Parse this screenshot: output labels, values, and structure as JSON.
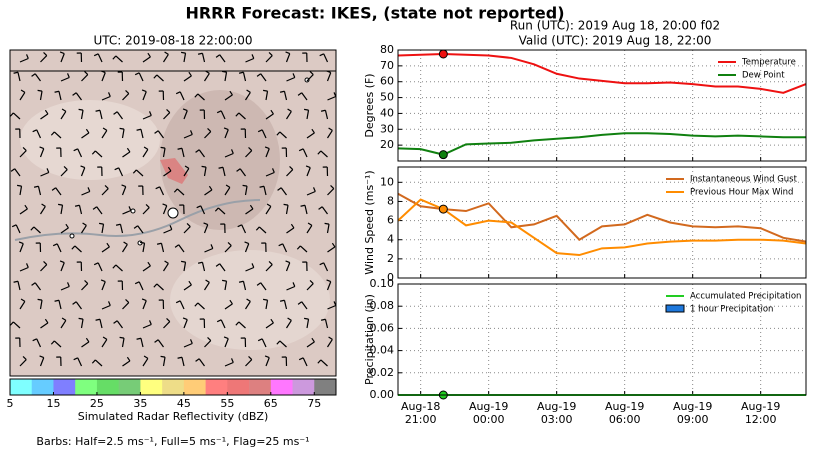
{
  "title": "HRRR Forecast: IKES, (state not reported)",
  "map": {
    "title": "UTC: 2019-08-18 22:00:00",
    "colorbar": {
      "label": "Simulated Radar Reflectivity (dBZ)",
      "lim": [
        5,
        80
      ],
      "ticks": [
        5,
        15,
        25,
        35,
        45,
        55,
        65,
        75
      ],
      "colors": [
        "#7fffff",
        "#66ccff",
        "#7f7fff",
        "#7fff7f",
        "#66dd66",
        "#77cc77",
        "#ffff7f",
        "#eedd88",
        "#ffcc77",
        "#ff7f7f",
        "#ee7777",
        "#dd8080",
        "#ff77ff",
        "#cc99dd",
        "#808080"
      ]
    },
    "note": "Barbs: Half=2.5 ms⁻¹, Full=5 ms⁻¹, Flag=25 ms⁻¹"
  },
  "run": "Run (UTC): 2019 Aug 18, 20:00 f02",
  "valid": "Valid (UTC): 2019 Aug 18, 22:00",
  "chart_data": [
    {
      "type": "line",
      "ylabel": "Degrees (F)",
      "ylim": [
        10,
        80
      ],
      "yticks": [
        20,
        30,
        40,
        50,
        60,
        70,
        80
      ],
      "grid": true,
      "legend": "upper right",
      "x": [
        "Aug-18 20:00",
        "Aug-18 21:00",
        "Aug-18 22:00",
        "Aug-18 23:00",
        "Aug-19 00:00",
        "Aug-19 01:00",
        "Aug-19 02:00",
        "Aug-19 03:00",
        "Aug-19 04:00",
        "Aug-19 05:00",
        "Aug-19 06:00",
        "Aug-19 07:00",
        "Aug-19 08:00",
        "Aug-19 09:00",
        "Aug-19 10:00",
        "Aug-19 11:00",
        "Aug-19 12:00",
        "Aug-19 13:00",
        "Aug-19 14:00"
      ],
      "xlim": [
        "Aug-18 20:00",
        "Aug-19 14:00"
      ],
      "xticks": [
        "Aug-18 21:00",
        "Aug-19 00:00",
        "Aug-19 03:00",
        "Aug-19 06:00",
        "Aug-19 09:00",
        "Aug-19 12:00"
      ],
      "series": [
        {
          "name": "Temperature",
          "color": "#ee1111",
          "marker": true,
          "values": [
            76.5,
            77,
            77.5,
            77,
            76.5,
            75,
            71,
            65,
            62,
            60.5,
            59,
            59,
            59.5,
            58.5,
            57,
            57,
            55.5,
            53,
            58.5
          ]
        },
        {
          "name": "Dew Point",
          "color": "#108010",
          "marker": true,
          "values": [
            18,
            17.5,
            14,
            20.5,
            21,
            21.5,
            23,
            24,
            25,
            26.5,
            27.5,
            27.5,
            27,
            26,
            25.5,
            26,
            25.5,
            25,
            25
          ]
        }
      ]
    },
    {
      "type": "line",
      "ylabel": "Wind Speed (ms⁻¹)",
      "ylim": [
        0,
        11.6
      ],
      "yticks": [
        0,
        2,
        4,
        6,
        8,
        10
      ],
      "grid": true,
      "legend": "upper right",
      "x": [
        "Aug-18 20:00",
        "Aug-18 21:00",
        "Aug-18 22:00",
        "Aug-18 23:00",
        "Aug-19 00:00",
        "Aug-19 01:00",
        "Aug-19 02:00",
        "Aug-19 03:00",
        "Aug-19 04:00",
        "Aug-19 05:00",
        "Aug-19 06:00",
        "Aug-19 07:00",
        "Aug-19 08:00",
        "Aug-19 09:00",
        "Aug-19 10:00",
        "Aug-19 11:00",
        "Aug-19 12:00",
        "Aug-19 13:00",
        "Aug-19 14:00"
      ],
      "xlim": [
        "Aug-18 20:00",
        "Aug-19 14:00"
      ],
      "xticks": [
        "Aug-18 21:00",
        "Aug-19 00:00",
        "Aug-19 03:00",
        "Aug-19 06:00",
        "Aug-19 09:00",
        "Aug-19 12:00"
      ],
      "series": [
        {
          "name": "Instantaneous Wind Gust",
          "color": "#d2691e",
          "marker": false,
          "values": [
            8.8,
            7.5,
            7.2,
            7,
            7.8,
            5.3,
            5.6,
            6.5,
            4,
            5.4,
            5.6,
            6.6,
            5.8,
            5.4,
            5.3,
            5.4,
            5.2,
            4.2,
            3.8
          ]
        },
        {
          "name": "Previous Hour Max Wind",
          "color": "#ff8c00",
          "marker": true,
          "values": [
            6,
            8.2,
            7.2,
            5.5,
            6,
            5.8,
            4.2,
            2.6,
            2.4,
            3.1,
            3.2,
            3.6,
            3.8,
            3.9,
            3.9,
            4,
            4,
            3.9,
            3.6
          ]
        }
      ]
    },
    {
      "type": "line",
      "ylabel": "Precipitation (in)",
      "ylim": [
        0,
        0.1
      ],
      "yticks": [
        {
          "value": 0,
          "label": "0.00"
        },
        {
          "value": 0.02,
          "label": "0.02"
        },
        {
          "value": 0.04,
          "label": "0.04"
        },
        {
          "value": 0.06,
          "label": "0.06"
        },
        {
          "value": 0.08,
          "label": "0.08"
        },
        {
          "value": 0.1,
          "label": "0.10"
        }
      ],
      "grid": true,
      "legend": "upper right",
      "x": [
        "Aug-18 20:00",
        "Aug-18 21:00",
        "Aug-18 22:00",
        "Aug-18 23:00",
        "Aug-19 00:00",
        "Aug-19 01:00",
        "Aug-19 02:00",
        "Aug-19 03:00",
        "Aug-19 04:00",
        "Aug-19 05:00",
        "Aug-19 06:00",
        "Aug-19 07:00",
        "Aug-19 08:00",
        "Aug-19 09:00",
        "Aug-19 10:00",
        "Aug-19 11:00",
        "Aug-19 12:00",
        "Aug-19 13:00",
        "Aug-19 14:00"
      ],
      "xlim": [
        "Aug-18 20:00",
        "Aug-19 14:00"
      ],
      "xticks": [
        "Aug-18 21:00",
        "Aug-19 00:00",
        "Aug-19 03:00",
        "Aug-19 06:00",
        "Aug-19 09:00",
        "Aug-19 12:00"
      ],
      "series": [
        {
          "name": "Accumulated Precipitation",
          "color": "#22cc22",
          "marker": true,
          "values": [
            0,
            0,
            0,
            0,
            0,
            0,
            0,
            0,
            0,
            0,
            0,
            0,
            0,
            0,
            0,
            0,
            0,
            0,
            0
          ]
        },
        {
          "name": "1 hour Precipitation",
          "color": "#1e78dc",
          "type": "bar",
          "values": [
            0,
            0,
            0,
            0,
            0,
            0,
            0,
            0,
            0,
            0,
            0,
            0,
            0,
            0,
            0,
            0,
            0,
            0,
            0
          ]
        }
      ]
    }
  ]
}
